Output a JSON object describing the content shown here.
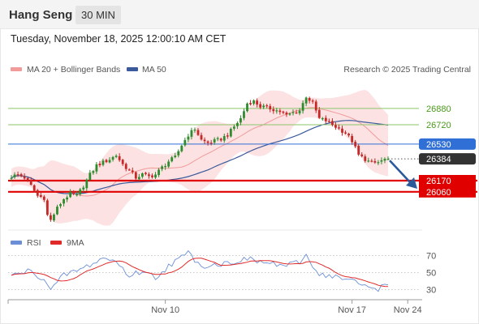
{
  "header": {
    "instrument": "Hang Seng",
    "interval": "30 MIN",
    "datetime": "Tuesday, November 18, 2025 12:00:10 AM CET"
  },
  "legend": {
    "bb_label": "MA 20 + Bollinger Bands",
    "ma50_label": "MA 50",
    "credit": "Research © 2025 Trading Central"
  },
  "price_levels": [
    {
      "label": "26880",
      "value": 26880,
      "kind": "resistance"
    },
    {
      "label": "26720",
      "value": 26720,
      "kind": "resistance"
    },
    {
      "label": "26530",
      "value": 26530,
      "kind": "pivot"
    },
    {
      "label": "26384",
      "value": 26384,
      "kind": "last"
    },
    {
      "label": "26170",
      "value": 26170,
      "kind": "support"
    },
    {
      "label": "26060",
      "value": 26060,
      "kind": "support"
    }
  ],
  "rsi_legend": {
    "rsi_label": "RSI",
    "ma_label": "9MA"
  },
  "rsi_axis": [
    {
      "label": "70",
      "value": 70
    },
    {
      "label": "50",
      "value": 50
    },
    {
      "label": "30",
      "value": 30
    }
  ],
  "x_axis": [
    {
      "label": "Nov 10",
      "index": 47
    },
    {
      "label": "Nov 17",
      "index": 104
    },
    {
      "label": "Nov 24",
      "index": 121
    }
  ],
  "colors": {
    "candle_up": "#2d8c2d",
    "candle_down": "#c62828",
    "bollinger_fill": "#fbd2d2",
    "ma20": "#f19b9b",
    "ma50": "#3a5a9c",
    "resistance": "#8dc56b",
    "resistance_text": "#4a9a1a",
    "pivot": "#2f6fd6",
    "support": "#e00000",
    "last": "#333333",
    "rsi": "#6b8fd6",
    "rsi_ma": "#e02a2a",
    "arrow": "#2a5a9a"
  },
  "chart_data": {
    "type": "candlestick",
    "y_range": [
      25700,
      27150
    ],
    "candle_count": 116,
    "anchors": [
      [
        0,
        26210
      ],
      [
        2,
        26230
      ],
      [
        4,
        26200
      ],
      [
        6,
        26120
      ],
      [
        8,
        26020
      ],
      [
        10,
        26000
      ],
      [
        11,
        25830
      ],
      [
        12,
        25780
      ],
      [
        14,
        25900
      ],
      [
        16,
        25990
      ],
      [
        18,
        26040
      ],
      [
        20,
        26020
      ],
      [
        22,
        26120
      ],
      [
        24,
        26230
      ],
      [
        26,
        26320
      ],
      [
        28,
        26350
      ],
      [
        30,
        26380
      ],
      [
        32,
        26420
      ],
      [
        34,
        26330
      ],
      [
        36,
        26270
      ],
      [
        38,
        26200
      ],
      [
        40,
        26230
      ],
      [
        42,
        26210
      ],
      [
        44,
        26230
      ],
      [
        46,
        26300
      ],
      [
        48,
        26360
      ],
      [
        50,
        26400
      ],
      [
        52,
        26520
      ],
      [
        54,
        26620
      ],
      [
        56,
        26680
      ],
      [
        58,
        26570
      ],
      [
        60,
        26540
      ],
      [
        62,
        26560
      ],
      [
        64,
        26580
      ],
      [
        66,
        26620
      ],
      [
        68,
        26700
      ],
      [
        70,
        26780
      ],
      [
        72,
        26930
      ],
      [
        74,
        26950
      ],
      [
        76,
        26900
      ],
      [
        78,
        26890
      ],
      [
        80,
        26870
      ],
      [
        82,
        26850
      ],
      [
        84,
        26810
      ],
      [
        86,
        26840
      ],
      [
        88,
        26860
      ],
      [
        90,
        27000
      ],
      [
        92,
        26930
      ],
      [
        94,
        26780
      ],
      [
        96,
        26760
      ],
      [
        98,
        26720
      ],
      [
        100,
        26680
      ],
      [
        102,
        26640
      ],
      [
        104,
        26560
      ],
      [
        106,
        26420
      ],
      [
        108,
        26380
      ],
      [
        110,
        26340
      ],
      [
        112,
        26350
      ],
      [
        114,
        26380
      ],
      [
        115,
        26384
      ]
    ],
    "rsi_anchors": [
      [
        0,
        46
      ],
      [
        5,
        52
      ],
      [
        10,
        43
      ],
      [
        12,
        29
      ],
      [
        16,
        47
      ],
      [
        22,
        55
      ],
      [
        28,
        67
      ],
      [
        32,
        63
      ],
      [
        36,
        46
      ],
      [
        40,
        52
      ],
      [
        44,
        44
      ],
      [
        48,
        58
      ],
      [
        54,
        73
      ],
      [
        58,
        58
      ],
      [
        64,
        60
      ],
      [
        72,
        66
      ],
      [
        78,
        61
      ],
      [
        84,
        58
      ],
      [
        88,
        62
      ],
      [
        90,
        70
      ],
      [
        94,
        48
      ],
      [
        98,
        46
      ],
      [
        104,
        40
      ],
      [
        108,
        34
      ],
      [
        112,
        31
      ],
      [
        115,
        38
      ]
    ],
    "rsi_range": [
      20,
      80
    ]
  }
}
